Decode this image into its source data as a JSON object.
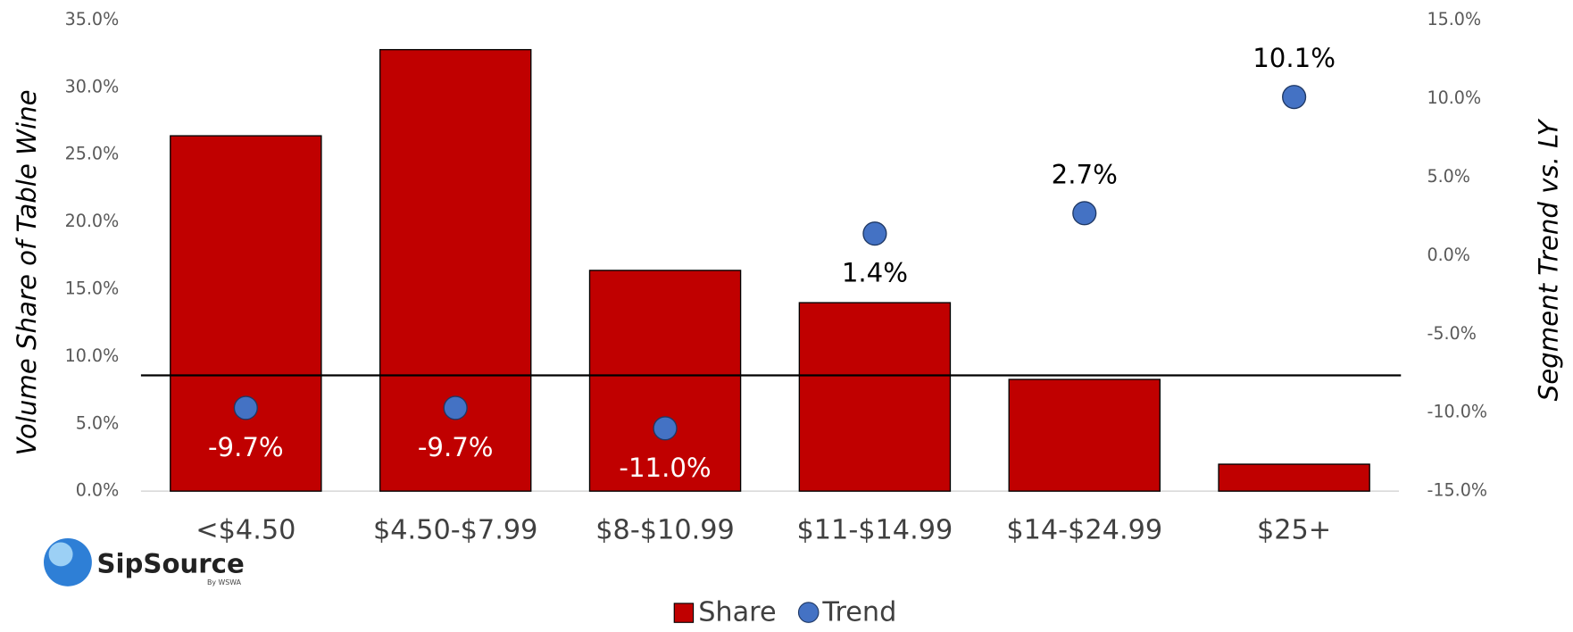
{
  "chart_data": {
    "type": "bar",
    "y_axis_label": "Volume Share of Table Wine",
    "y2_axis_label": "Segment Trend vs. LY",
    "categories": [
      "<$4.50",
      "$4.50-$7.99",
      "$8-$10.99",
      "$11-$14.99",
      "$14-$24.99",
      "$25+"
    ],
    "series": [
      {
        "name": "Share",
        "type": "bar",
        "color": "#c00000",
        "values": [
          26.4,
          32.8,
          16.4,
          14.0,
          8.3,
          2.0
        ]
      },
      {
        "name": "Trend",
        "type": "scatter",
        "axis": "y2",
        "color": "#4472c4",
        "values": [
          -9.7,
          -9.7,
          -11.0,
          1.4,
          2.7,
          10.1
        ],
        "value_labels": [
          "-9.7%",
          "-9.7%",
          "-11.0%",
          "1.4%",
          "2.7%",
          "10.1%"
        ]
      }
    ],
    "reference_line": 8.6,
    "ylim": [
      0,
      35
    ],
    "yticks": [
      {
        "value": 0,
        "label": "0.0%"
      },
      {
        "value": 5,
        "label": "5.0%"
      },
      {
        "value": 10,
        "label": "10.0%"
      },
      {
        "value": 15,
        "label": "15.0%"
      },
      {
        "value": 20,
        "label": "20.0%"
      },
      {
        "value": 25,
        "label": "25.0%"
      },
      {
        "value": 30,
        "label": "30.0%"
      },
      {
        "value": 35,
        "label": "35.0%"
      }
    ],
    "y2lim": [
      -15,
      15
    ],
    "y2ticks": [
      {
        "value": -15,
        "label": "-15.0%"
      },
      {
        "value": -10,
        "label": "-10.0%"
      },
      {
        "value": -5,
        "label": "-5.0%"
      },
      {
        "value": 0,
        "label": "0.0%"
      },
      {
        "value": 5,
        "label": "5.0%"
      },
      {
        "value": 10,
        "label": "10.0%"
      },
      {
        "value": 15,
        "label": "15.0%"
      }
    ],
    "legend": "bottom",
    "logo": {
      "name": "SipSource",
      "tagline": "By WSWA"
    }
  }
}
